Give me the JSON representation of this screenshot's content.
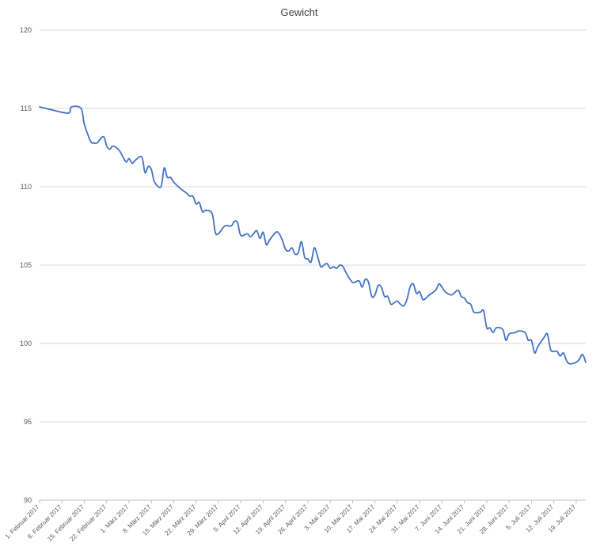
{
  "chart_data": {
    "type": "line",
    "title": "Gewicht",
    "xlabel": "",
    "ylabel": "",
    "ylim": [
      90,
      120
    ],
    "yticks": [
      90,
      95,
      100,
      105,
      110,
      115,
      120
    ],
    "grid": true,
    "legend": "none",
    "colors": {
      "line": "#4472c4",
      "grid": "#d9d9d9",
      "axis": "#bfbfbf",
      "text": "#595959"
    },
    "x_start": "1. Februar 2017",
    "x_end": "22. Juli 2017",
    "xtick_labels": [
      "1. Februar 2017",
      "8. Februar 2017",
      "15. Februar 2017",
      "22. Februar 2017",
      "1. März 2017",
      "8. März 2017",
      "15. März 2017",
      "22. März 2017",
      "29. März 2017",
      "5. April 2017",
      "12. April 2017",
      "19. April 2017",
      "26. April 2017",
      "3. Mai 2017",
      "10. Mai 2017",
      "17. Mai 2017",
      "24. Mai 2017",
      "31. Mai 2017",
      "7. Juni 2017",
      "14. Juni 2017",
      "21. Juni 2017",
      "28. Juni 2017",
      "5. Juli 2017",
      "12. Juli 2017",
      "19. Juli 2017"
    ],
    "series": [
      {
        "points": [
          [
            "1. Februar 2017",
            115.1
          ],
          [
            "5. Februar 2017",
            114.9
          ],
          [
            "10. Februar 2017",
            114.7
          ],
          [
            "11. Februar 2017",
            115.1
          ],
          [
            "14. Februar 2017",
            115.0
          ],
          [
            "15. Februar 2017",
            114.0
          ],
          [
            "17. Februar 2017",
            112.9
          ],
          [
            "18. Februar 2017",
            112.8
          ],
          [
            "19. Februar 2017",
            112.8
          ],
          [
            "21. Februar 2017",
            113.2
          ],
          [
            "22. Februar 2017",
            112.6
          ],
          [
            "23. Februar 2017",
            112.4
          ],
          [
            "24. Februar 2017",
            112.6
          ],
          [
            "26. Februar 2017",
            112.3
          ],
          [
            "28. Februar 2017",
            111.6
          ],
          [
            "1. März 2017",
            111.8
          ],
          [
            "2. März 2017",
            111.5
          ],
          [
            "3. März 2017",
            111.7
          ],
          [
            "5. März 2017",
            111.9
          ],
          [
            "6. März 2017",
            110.9
          ],
          [
            "7. März 2017",
            111.3
          ],
          [
            "8. März 2017",
            111.1
          ],
          [
            "9. März 2017",
            110.3
          ],
          [
            "11. März 2017",
            110.0
          ],
          [
            "12. März 2017",
            111.2
          ],
          [
            "13. März 2017",
            110.6
          ],
          [
            "14. März 2017",
            110.6
          ],
          [
            "15. März 2017",
            110.3
          ],
          [
            "17. März 2017",
            109.9
          ],
          [
            "19. März 2017",
            109.6
          ],
          [
            "20. März 2017",
            109.4
          ],
          [
            "21. März 2017",
            109.4
          ],
          [
            "22. März 2017",
            108.9
          ],
          [
            "23. März 2017",
            109.0
          ],
          [
            "24. März 2017",
            108.4
          ],
          [
            "25. März 2017",
            108.5
          ],
          [
            "27. März 2017",
            108.3
          ],
          [
            "28. März 2017",
            107.1
          ],
          [
            "29. März 2017",
            107.0
          ],
          [
            "31. März 2017",
            107.5
          ],
          [
            "2. April 2017",
            107.5
          ],
          [
            "3. April 2017",
            107.8
          ],
          [
            "4. April 2017",
            107.7
          ],
          [
            "5. April 2017",
            106.9
          ],
          [
            "7. April 2017",
            107.0
          ],
          [
            "8. April 2017",
            106.8
          ],
          [
            "9. April 2017",
            107.0
          ],
          [
            "10. April 2017",
            107.2
          ],
          [
            "11. April 2017",
            106.7
          ],
          [
            "12. April 2017",
            107.1
          ],
          [
            "13. April 2017",
            106.3
          ],
          [
            "14. April 2017",
            106.6
          ],
          [
            "16. April 2017",
            107.1
          ],
          [
            "17. April 2017",
            107.0
          ],
          [
            "18. April 2017",
            106.6
          ],
          [
            "19. April 2017",
            106.0
          ],
          [
            "20. April 2017",
            105.9
          ],
          [
            "21. April 2017",
            106.1
          ],
          [
            "22. April 2017",
            105.7
          ],
          [
            "23. April 2017",
            105.8
          ],
          [
            "24. April 2017",
            106.5
          ],
          [
            "25. April 2017",
            105.5
          ],
          [
            "26. April 2017",
            105.4
          ],
          [
            "27. April 2017",
            105.2
          ],
          [
            "28. April 2017",
            106.1
          ],
          [
            "29. April 2017",
            105.6
          ],
          [
            "30. April 2017",
            104.9
          ],
          [
            "1. Mai 2017",
            105.0
          ],
          [
            "2. Mai 2017",
            105.1
          ],
          [
            "3. Mai 2017",
            104.8
          ],
          [
            "4. Mai 2017",
            104.9
          ],
          [
            "5. Mai 2017",
            104.8
          ],
          [
            "6. Mai 2017",
            105.0
          ],
          [
            "7. Mai 2017",
            104.9
          ],
          [
            "8. Mai 2017",
            104.5
          ],
          [
            "10. Mai 2017",
            103.9
          ],
          [
            "12. Mai 2017",
            104.0
          ],
          [
            "13. Mai 2017",
            103.6
          ],
          [
            "14. Mai 2017",
            104.1
          ],
          [
            "15. Mai 2017",
            103.9
          ],
          [
            "16. Mai 2017",
            103.0
          ],
          [
            "17. Mai 2017",
            103.1
          ],
          [
            "18. Mai 2017",
            103.7
          ],
          [
            "19. Mai 2017",
            103.6
          ],
          [
            "20. Mai 2017",
            103.0
          ],
          [
            "21. Mai 2017",
            103.0
          ],
          [
            "22. Mai 2017",
            102.5
          ],
          [
            "23. Mai 2017",
            102.6
          ],
          [
            "24. Mai 2017",
            102.7
          ],
          [
            "25. Mai 2017",
            102.5
          ],
          [
            "26. Mai 2017",
            102.4
          ],
          [
            "27. Mai 2017",
            102.8
          ],
          [
            "28. Mai 2017",
            103.6
          ],
          [
            "29. Mai 2017",
            103.8
          ],
          [
            "30. Mai 2017",
            103.2
          ],
          [
            "31. Mai 2017",
            103.3
          ],
          [
            "1. Juni 2017",
            102.8
          ],
          [
            "2. Juni 2017",
            102.9
          ],
          [
            "3. Juni 2017",
            103.1
          ],
          [
            "5. Juni 2017",
            103.4
          ],
          [
            "6. Juni 2017",
            103.8
          ],
          [
            "7. Juni 2017",
            103.6
          ],
          [
            "8. Juni 2017",
            103.3
          ],
          [
            "10. Juni 2017",
            103.1
          ],
          [
            "12. Juni 2017",
            103.4
          ],
          [
            "13. Juni 2017",
            103.0
          ],
          [
            "14. Juni 2017",
            102.9
          ],
          [
            "15. Juni 2017",
            102.6
          ],
          [
            "16. Juni 2017",
            102.5
          ],
          [
            "17. Juni 2017",
            102.0
          ],
          [
            "19. Juni 2017",
            102.0
          ],
          [
            "20. Juni 2017",
            102.1
          ],
          [
            "21. Juni 2017",
            101.0
          ],
          [
            "22. Juni 2017",
            101.0
          ],
          [
            "23. Juni 2017",
            100.7
          ],
          [
            "24. Juni 2017",
            101.0
          ],
          [
            "26. Juni 2017",
            100.9
          ],
          [
            "27. Juni 2017",
            100.2
          ],
          [
            "28. Juni 2017",
            100.6
          ],
          [
            "30. Juni 2017",
            100.7
          ],
          [
            "1. Juli 2017",
            100.8
          ],
          [
            "3. Juli 2017",
            100.7
          ],
          [
            "4. Juli 2017",
            100.2
          ],
          [
            "5. Juli 2017",
            100.2
          ],
          [
            "6. Juli 2017",
            99.4
          ],
          [
            "7. Juli 2017",
            99.8
          ],
          [
            "9. Juli 2017",
            100.4
          ],
          [
            "10. Juli 2017",
            100.6
          ],
          [
            "11. Juli 2017",
            99.6
          ],
          [
            "12. Juli 2017",
            99.5
          ],
          [
            "13. Juli 2017",
            99.5
          ],
          [
            "14. Juli 2017",
            99.2
          ],
          [
            "15. Juli 2017",
            99.4
          ],
          [
            "16. Juli 2017",
            98.9
          ],
          [
            "17. Juli 2017",
            98.7
          ],
          [
            "19. Juli 2017",
            98.8
          ],
          [
            "20. Juli 2017",
            99.0
          ],
          [
            "21. Juli 2017",
            99.3
          ],
          [
            "22. Juli 2017",
            98.8
          ]
        ]
      }
    ]
  }
}
